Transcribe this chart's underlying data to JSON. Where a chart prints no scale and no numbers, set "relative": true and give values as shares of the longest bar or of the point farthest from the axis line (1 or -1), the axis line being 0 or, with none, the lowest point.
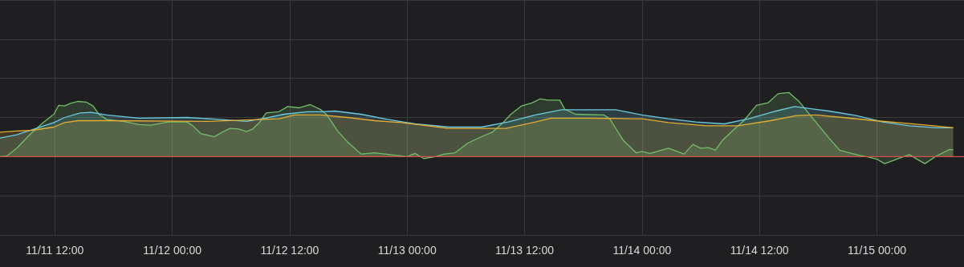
{
  "chart_data": {
    "type": "area",
    "relative": true,
    "grid": true,
    "xlim": [
      "--11-11T06:24",
      "--11-15T08:54"
    ],
    "xticks": [
      {
        "value": "--11-11T12:00",
        "label": "11/11 12:00"
      },
      {
        "value": "--11-12T00:00",
        "label": "11/12 00:00"
      },
      {
        "value": "--11-12T12:00",
        "label": "11/12 12:00"
      },
      {
        "value": "--11-13T00:00",
        "label": "11/13 00:00"
      },
      {
        "value": "--11-13T12:00",
        "label": "11/13 12:00"
      },
      {
        "value": "--11-14T00:00",
        "label": "11/14 00:00"
      },
      {
        "value": "--11-14T12:00",
        "label": "11/14 12:00"
      },
      {
        "value": "--11-15T00:00",
        "label": "11/15 00:00"
      }
    ],
    "series": [
      {
        "color": "#73bf69",
        "x": [
          "--11-11T06:24",
          "--11-11T07:06",
          "--11-11T08:06",
          "--11-11T09:30",
          "--11-11T10:48",
          "--11-11T11:54",
          "--11-11T12:24",
          "--11-11T13:00",
          "--11-11T13:36",
          "--11-11T14:24",
          "--11-11T15:12",
          "--11-11T15:54",
          "--11-11T16:30",
          "--11-11T17:18",
          "--11-11T19:00",
          "--11-11T20:36",
          "--11-11T21:48",
          "--11-11T23:36",
          "--11-12T01:30",
          "--11-12T02:06",
          "--11-12T02:54",
          "--11-12T04:18",
          "--11-12T05:06",
          "--11-12T05:54",
          "--11-12T06:48",
          "--11-12T07:36",
          "--11-12T08:12",
          "--11-12T08:54",
          "--11-12T09:36",
          "--11-12T10:54",
          "--11-12T11:48",
          "--11-12T13:00",
          "--11-12T14:06",
          "--11-12T15:12",
          "--11-12T15:48",
          "--11-12T16:54",
          "--11-12T17:54",
          "--11-12T19:18",
          "--11-12T20:42",
          "--11-12T22:18",
          "--11-13T00:00",
          "--11-13T00:48",
          "--11-13T01:42",
          "--11-13T02:54",
          "--11-13T03:48",
          "--11-13T04:54",
          "--11-13T06:12",
          "--11-13T07:36",
          "--11-13T08:42",
          "--11-13T09:48",
          "--11-13T10:36",
          "--11-13T11:42",
          "--11-13T12:48",
          "--11-13T13:36",
          "--11-13T14:24",
          "--11-13T15:36",
          "--11-13T16:06",
          "--11-13T17:12",
          "--11-13T20:06",
          "--11-13T20:42",
          "--11-13T22:06",
          "--11-13T23:24",
          "--11-14T00:00",
          "--11-14T00:48",
          "--11-14T02:42",
          "--11-14T04:18",
          "--11-14T05:12",
          "--11-14T06:00",
          "--11-14T06:48",
          "--11-14T07:30",
          "--11-14T08:12",
          "--11-14T09:18",
          "--11-14T10:24",
          "--11-14T11:42",
          "--11-14T12:54",
          "--11-14T13:54",
          "--11-14T15:00",
          "--11-14T16:06",
          "--11-14T17:48",
          "--11-14T19:06",
          "--11-14T20:12",
          "--11-14T21:54",
          "--11-14T23:12",
          "--11-15T00:00",
          "--11-15T00:48",
          "--11-15T02:00",
          "--11-15T03:18",
          "--11-15T04:54",
          "--11-15T06:06",
          "--11-15T07:24",
          "--11-15T07:48"
        ],
        "values": [
          0,
          0.01,
          0.13,
          0.35,
          0.53,
          0.66,
          0.8,
          0.79,
          0.83,
          0.86,
          0.85,
          0.79,
          0.66,
          0.58,
          0.55,
          0.5,
          0.49,
          0.54,
          0.54,
          0.48,
          0.36,
          0.31,
          0.38,
          0.44,
          0.43,
          0.39,
          0.43,
          0.53,
          0.68,
          0.7,
          0.78,
          0.76,
          0.81,
          0.73,
          0.65,
          0.4,
          0.23,
          0.04,
          0.06,
          0.03,
          0,
          0.05,
          -0.03,
          0,
          0.04,
          0.06,
          0.21,
          0.31,
          0.38,
          0.53,
          0.66,
          0.79,
          0.84,
          0.9,
          0.88,
          0.88,
          0.74,
          0.66,
          0.65,
          0.59,
          0.25,
          0.06,
          0.08,
          0.05,
          0.13,
          0.04,
          0.19,
          0.13,
          0.14,
          0.1,
          0.25,
          0.41,
          0.56,
          0.8,
          0.84,
          0.98,
          1,
          0.85,
          0.53,
          0.29,
          0.1,
          0.03,
          -0.01,
          -0.04,
          -0.11,
          -0.04,
          0.03,
          -0.11,
          0.01,
          0.11,
          0.11
        ]
      },
      {
        "color": "#6ccbe0",
        "x": [
          "--11-11T06:24",
          "--11-11T08:06",
          "--11-11T09:54",
          "--11-11T11:54",
          "--11-11T13:00",
          "--11-11T14:36",
          "--11-11T15:42",
          "--11-11T17:18",
          "--11-11T20:36",
          "--11-12T01:30",
          "--11-12T04:48",
          "--11-12T07:36",
          "--11-12T09:30",
          "--11-12T11:24",
          "--11-12T13:48",
          "--11-12T15:12",
          "--11-12T16:36",
          "--11-12T19:18",
          "--11-12T22:00",
          "--11-13T00:48",
          "--11-13T04:18",
          "--11-13T07:36",
          "--11-13T10:18",
          "--11-13T13:06",
          "--11-13T15:48",
          "--11-13T21:18",
          "--11-14T00:00",
          "--11-14T02:42",
          "--11-14T05:30",
          "--11-14T08:24",
          "--11-14T10:54",
          "--11-14T13:42",
          "--11-14T15:36",
          "--11-14T19:06",
          "--11-14T21:54",
          "--11-15T00:36",
          "--11-15T03:18",
          "--11-15T06:06",
          "--11-15T07:48"
        ],
        "values": [
          0.29,
          0.34,
          0.43,
          0.53,
          0.61,
          0.68,
          0.69,
          0.65,
          0.6,
          0.61,
          0.58,
          0.55,
          0.6,
          0.66,
          0.7,
          0.7,
          0.71,
          0.66,
          0.58,
          0.51,
          0.46,
          0.46,
          0.54,
          0.65,
          0.73,
          0.73,
          0.65,
          0.59,
          0.54,
          0.51,
          0.59,
          0.71,
          0.78,
          0.71,
          0.64,
          0.54,
          0.48,
          0.45,
          0.45
        ]
      },
      {
        "color": "#e5ac32",
        "x": [
          "--11-11T06:24",
          "--11-11T08:06",
          "--11-11T09:42",
          "--11-11T11:54",
          "--11-11T13:00",
          "--11-11T14:24",
          "--11-11T17:18",
          "--11-12T03:42",
          "--11-12T10:54",
          "--11-12T12:30",
          "--11-12T15:12",
          "--11-12T17:54",
          "--11-12T20:42",
          "--11-12T23:24",
          "--11-13T02:06",
          "--11-13T04:06",
          "--11-13T10:06",
          "--11-13T13:06",
          "--11-13T14:42",
          "--11-13T18:30",
          "--11-13T23:12",
          "--11-14T00:00",
          "--11-14T02:42",
          "--11-14T06:36",
          "--11-14T09:48",
          "--11-14T13:06",
          "--11-14T15:48",
          "--11-14T17:48",
          "--11-14T20:30",
          "--11-14T23:48",
          "--11-15T02:12",
          "--11-15T05:48",
          "--11-15T07:48"
        ],
        "values": [
          0.38,
          0.4,
          0.41,
          0.46,
          0.53,
          0.56,
          0.56,
          0.55,
          0.59,
          0.65,
          0.65,
          0.61,
          0.56,
          0.53,
          0.48,
          0.44,
          0.44,
          0.54,
          0.6,
          0.6,
          0.59,
          0.59,
          0.53,
          0.48,
          0.48,
          0.56,
          0.64,
          0.65,
          0.61,
          0.56,
          0.53,
          0.48,
          0.45
        ]
      },
      {
        "type": "line",
        "color": "#d0504a",
        "x": [
          "--11-11T06:24",
          "--11-15T08:54"
        ],
        "values": [
          0,
          0
        ]
      }
    ]
  }
}
